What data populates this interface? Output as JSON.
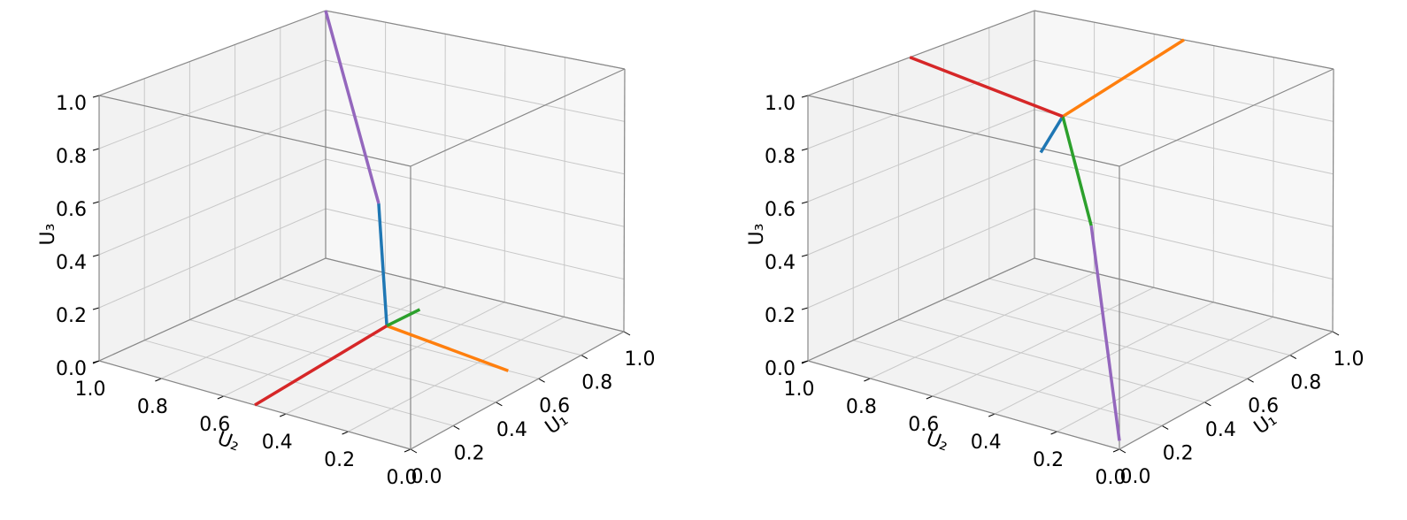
{
  "chart_data": [
    {
      "type": "line3d",
      "xlabel": "U₁",
      "ylabel": "U₂",
      "zlabel": "U₃",
      "grid": true,
      "xlim": [
        0,
        1
      ],
      "ylim": [
        0,
        1
      ],
      "zlim": [
        0,
        1
      ],
      "xticks": [
        {
          "value": 0,
          "label": "0.0"
        },
        0.2,
        0.4,
        0.6,
        0.8,
        {
          "value": 1,
          "label": "1.0"
        }
      ],
      "yticks": [
        {
          "value": 0,
          "label": "0.0"
        },
        0.2,
        0.4,
        0.6,
        0.8,
        {
          "value": 1,
          "label": "1.0"
        }
      ],
      "zticks": [
        {
          "value": 0,
          "label": "0.0"
        },
        0.2,
        0.4,
        0.6,
        0.8,
        {
          "value": 1,
          "label": "1.0"
        }
      ],
      "series": [
        {
          "color": "#1f77b4",
          "x": [
            0.6,
            0.7
          ],
          "y": [
            0.5,
            0.6
          ],
          "z": [
            0.05,
            0.45
          ]
        },
        {
          "color": "#ff7f0e",
          "x": [
            0.6,
            0.6
          ],
          "y": [
            0.5,
            0.1
          ],
          "z": [
            0.05,
            0
          ]
        },
        {
          "color": "#2ca02c",
          "x": [
            0.6,
            0.75
          ],
          "y": [
            0.5,
            0.5
          ],
          "z": [
            0.05,
            0.05
          ]
        },
        {
          "color": "#d62728",
          "x": [
            0.6,
            0
          ],
          "y": [
            0.5,
            0.5
          ],
          "z": [
            0.05,
            0
          ]
        },
        {
          "color": "#9467bd",
          "x": [
            0.7,
            1
          ],
          "y": [
            0.6,
            1
          ],
          "z": [
            0.45,
            1
          ]
        }
      ]
    },
    {
      "type": "line3d",
      "xlabel": "U₁",
      "ylabel": "U₂",
      "zlabel": "U₃",
      "grid": true,
      "xlim": [
        0,
        1
      ],
      "ylim": [
        0,
        1
      ],
      "zlim": [
        0,
        1
      ],
      "xticks": [
        {
          "value": 0,
          "label": "0.0"
        },
        0.2,
        0.4,
        0.6,
        0.8,
        {
          "value": 1,
          "label": "1.0"
        }
      ],
      "yticks": [
        {
          "value": 0,
          "label": "0.0"
        },
        0.2,
        0.4,
        0.6,
        0.8,
        {
          "value": 1,
          "label": "1.0"
        }
      ],
      "zticks": [
        {
          "value": 0,
          "label": "0.0"
        },
        0.2,
        0.4,
        0.6,
        0.8,
        {
          "value": 1,
          "label": "1.0"
        }
      ],
      "series": [
        {
          "color": "#1f77b4",
          "x": [
            0.45,
            0.35
          ],
          "y": [
            0.5,
            0.5
          ],
          "z": [
            0.9,
            0.8
          ]
        },
        {
          "color": "#ff7f0e",
          "x": [
            0.45,
            1
          ],
          "y": [
            0.5,
            0.5
          ],
          "z": [
            0.9,
            1
          ]
        },
        {
          "color": "#2ca02c",
          "x": [
            0.45,
            0.3
          ],
          "y": [
            0.5,
            0.3
          ],
          "z": [
            0.9,
            0.6
          ]
        },
        {
          "color": "#d62728",
          "x": [
            0.45,
            0.45
          ],
          "y": [
            0.5,
            1
          ],
          "z": [
            0.9,
            1
          ]
        },
        {
          "color": "#9467bd",
          "x": [
            0.3,
            0
          ],
          "y": [
            0.3,
            0
          ],
          "z": [
            0.6,
            0.03
          ]
        }
      ]
    }
  ]
}
